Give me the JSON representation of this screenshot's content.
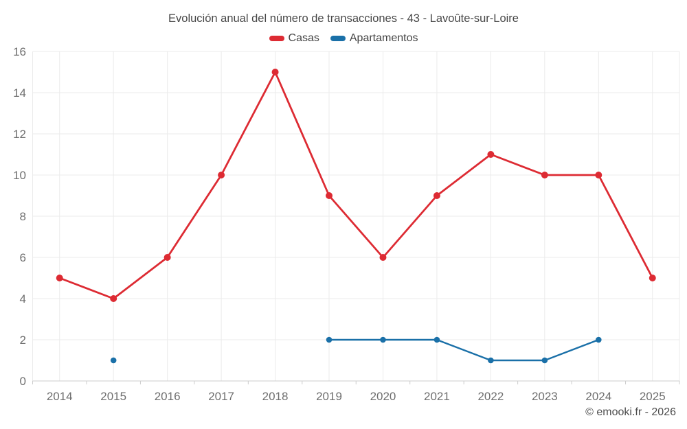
{
  "page": {
    "attribution": "© emooki.fr - 2026"
  },
  "chart_data": {
    "type": "line",
    "title": "Evolución anual del número de transacciones - 43 - Lavoûte-sur-Loire",
    "categories": [
      "2014",
      "2015",
      "2016",
      "2017",
      "2018",
      "2019",
      "2020",
      "2021",
      "2022",
      "2023",
      "2024",
      "2025"
    ],
    "series": [
      {
        "name": "Casas",
        "color": "#dd2b33",
        "values": [
          5,
          4,
          6,
          10,
          15,
          9,
          6,
          9,
          11,
          10,
          10,
          5
        ]
      },
      {
        "name": "Apartamentos",
        "color": "#1a70a8",
        "values": [
          null,
          1,
          null,
          null,
          null,
          2,
          2,
          2,
          1,
          1,
          2,
          null
        ]
      }
    ],
    "xlabel": "",
    "ylabel": "",
    "ylim": [
      0,
      16
    ],
    "ytick_step": 2,
    "grid": true,
    "legend_position": "top"
  },
  "theme": {
    "grid_color": "#ebebeb",
    "axis_color": "#cccccc",
    "tick_label_color": "#6e6e6e",
    "title_color": "#474747"
  }
}
